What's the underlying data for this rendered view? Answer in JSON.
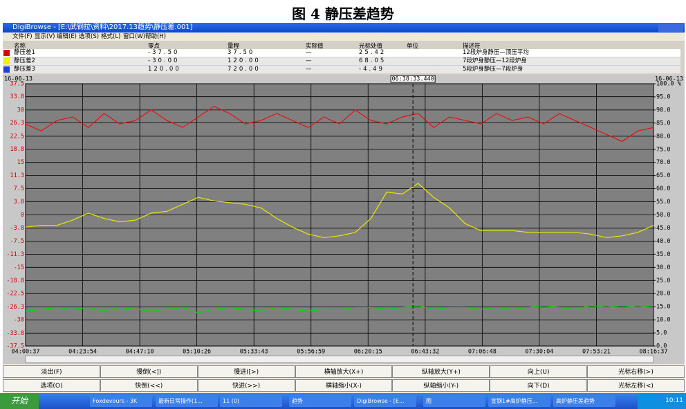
{
  "caption": "图 4 静压差趋势",
  "window": {
    "title": "DigiBrowse - [E:\\武钢拉\\资料\\2017.13趋势\\静压差.001]",
    "menu": [
      "文件(F)",
      "显示(V)",
      "编辑(E)",
      "选项(S)",
      "格式(L)",
      "窗口(W)",
      "帮助(H)"
    ]
  },
  "table": {
    "header": [
      "名称",
      "零点",
      "量程",
      "实际值",
      "光标处值",
      "单位",
      "描述符"
    ],
    "rows": [
      {
        "color": "#e00000",
        "cells": [
          "静压差1",
          "-37.50",
          "37.50",
          "—",
          "25.42",
          "",
          "12段炉身静压—顶压平均"
        ]
      },
      {
        "color": "#f0f000",
        "cells": [
          "静压差2",
          "-30.00",
          "120.00",
          "—",
          "68.05",
          "",
          "7段炉身静压—12段炉身"
        ]
      },
      {
        "color": "#2040e0",
        "cells": [
          "静压差3",
          "120.00",
          "720.00",
          "—",
          "-4.49",
          "",
          "5段炉身静压—7段炉身"
        ]
      }
    ]
  },
  "chart_data": {
    "type": "line",
    "date_left": "16-06-13",
    "date_right": "16-06-13",
    "cursor": {
      "x": 157.93,
      "label": "06:38:33.440"
    },
    "x": [
      0,
      6.4,
      12.8,
      19.2,
      25.6,
      32,
      38.4,
      44.8,
      51.2,
      57.6,
      64,
      70.4,
      76.8,
      83.2,
      89.6,
      96,
      102.4,
      108.8,
      115.2,
      121.6,
      128,
      134.4,
      140.8,
      147.2,
      153.6,
      160,
      166.4,
      172.8,
      179.2,
      185.6,
      192,
      198.4,
      204.8,
      211.2,
      217.6,
      224,
      230.4,
      236.8,
      243.2,
      249.6,
      256
    ],
    "xlim": [
      0,
      256
    ],
    "xticks": [
      {
        "value": 0,
        "label": "04:00:37"
      },
      {
        "value": 23.28,
        "label": "04:23:54"
      },
      {
        "value": 46.55,
        "label": "04:47:10"
      },
      {
        "value": 69.82,
        "label": "05:10:26"
      },
      {
        "value": 93.1,
        "label": "05:33:43"
      },
      {
        "value": 116.37,
        "label": "05:56:59"
      },
      {
        "value": 139.63,
        "label": "06:20:15"
      },
      {
        "value": 162.92,
        "label": "06:43:32"
      },
      {
        "value": 186.18,
        "label": "07:06:48"
      },
      {
        "value": 209.45,
        "label": "07:30:04"
      },
      {
        "value": 232.73,
        "label": "07:53:21"
      },
      {
        "value": 256,
        "label": "08:16:37"
      }
    ],
    "ylim": [
      -37.5,
      37.5
    ],
    "yticks": [
      37.5,
      33.8,
      30.0,
      26.3,
      22.5,
      18.8,
      15.0,
      11.3,
      7.5,
      3.8,
      0.0,
      -3.8,
      -7.5,
      -11.3,
      -15.0,
      -18.8,
      -22.5,
      -26.3,
      -30.0,
      -33.8,
      -37.5
    ],
    "y2lim": [
      0,
      100
    ],
    "y2ticks": [
      {
        "value": 100,
        "label": "100.0 %"
      },
      {
        "value": 95,
        "label": "95.0"
      },
      {
        "value": 90,
        "label": "90.0"
      },
      {
        "value": 85,
        "label": "85.0"
      },
      {
        "value": 80,
        "label": "80.0"
      },
      {
        "value": 75,
        "label": "75.0"
      },
      {
        "value": 70,
        "label": "70.0"
      },
      {
        "value": 65,
        "label": "65.0"
      },
      {
        "value": 60,
        "label": "60.0"
      },
      {
        "value": 55,
        "label": "55.0"
      },
      {
        "value": 50,
        "label": "50.0"
      },
      {
        "value": 45,
        "label": "45.0"
      },
      {
        "value": 40,
        "label": "40.0"
      },
      {
        "value": 35,
        "label": "35.0"
      },
      {
        "value": 30,
        "label": "30.0"
      },
      {
        "value": 25,
        "label": "25.0"
      },
      {
        "value": 20,
        "label": "20.0"
      },
      {
        "value": 15,
        "label": "15.0"
      },
      {
        "value": 10,
        "label": "10.0"
      },
      {
        "value": 5,
        "label": "5.0"
      },
      {
        "value": 0,
        "label": "0.0"
      }
    ],
    "grid": true,
    "series": [
      {
        "color": "#e81010",
        "values": [
          26,
          24,
          27,
          28,
          25,
          29,
          26,
          27,
          30,
          27,
          25,
          28,
          31,
          29,
          26,
          27,
          29,
          27,
          25,
          28,
          26,
          30,
          27,
          26,
          28,
          29,
          25,
          28,
          27,
          26,
          29,
          27,
          28,
          26,
          29,
          27,
          25,
          23,
          21,
          24,
          25
        ]
      },
      {
        "color": "#e8e800",
        "values": [
          -3.5,
          -3,
          -3,
          -1.5,
          0.5,
          -1,
          -2,
          -1.5,
          0.5,
          1,
          3,
          5,
          4,
          3.5,
          3,
          2,
          -1,
          -3.5,
          -5.5,
          -6.5,
          -6,
          -5,
          -1,
          6.5,
          6,
          9,
          5,
          2,
          -2.5,
          -4.5,
          -4.5,
          -4.5,
          -5,
          -5,
          -5,
          -5,
          -5.5,
          -6.5,
          -6,
          -5,
          -3
        ]
      },
      {
        "color": "#10d010",
        "values": [
          -27.5,
          -27,
          -26.5,
          -27,
          -26.5,
          -27.5,
          -26.5,
          -27,
          -27.5,
          -27,
          -26.5,
          -28,
          -27,
          -26.5,
          -27,
          -27.5,
          -26.5,
          -27,
          -27.5,
          -27,
          -27,
          -26.5,
          -26.5,
          -27,
          -26.5,
          -26,
          -27,
          -26.5,
          -26.5,
          -27,
          -26.5,
          -27,
          -26.5,
          -26,
          -26.5,
          -27,
          -26,
          -26.5,
          -26,
          -26.5,
          -26
        ]
      }
    ]
  },
  "buttons": [
    [
      "淡出(F)",
      "慢倒(<])",
      "慢进([>)",
      "横轴放大(X+)",
      "纵轴放大(Y+)",
      "向上(U)",
      "光标右移(>)"
    ],
    [
      "选项(O)",
      "快倒(<<)",
      "快进(>>)",
      "横轴缩小(X-)",
      "纵轴缩小(Y-)",
      "向下(D)",
      "光标左移(<)"
    ]
  ],
  "taskbar": {
    "start": "开始",
    "items": [
      "Foxdevours - 3K",
      "最新日常操作(1...",
      "11 (0)",
      "趋势",
      "DigiBrowse - [E...",
      "图",
      "宣钢1#高炉静压...",
      "高炉静压差趋势"
    ],
    "clock": "10:11"
  }
}
